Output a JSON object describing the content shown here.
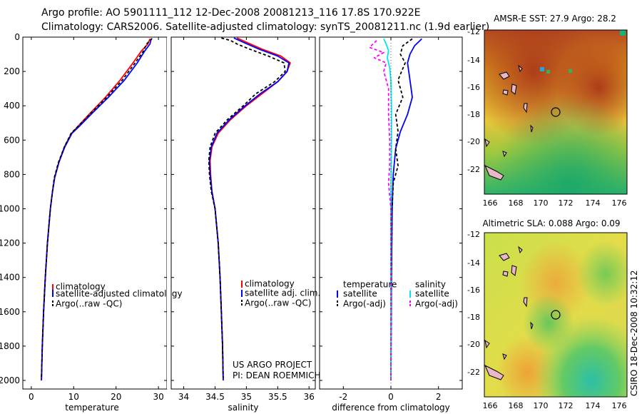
{
  "header": {
    "line1": "Argo profile: AO 5901111_112 12-Dec-2008 20081213_116 17.8S 170.922E",
    "line2": "Climatology: CARS2006. Satellite-adjusted climatology: synTS_20081211.nc (1.9d earlier)"
  },
  "footer": {
    "project": "US ARGO PROJECT",
    "pi": "PI: DEAN ROEMMICH",
    "stamp": "CSIRO 18-Dec-2008 10:32:12"
  },
  "colors": {
    "red": "#ff0000",
    "blue": "#0000ff",
    "black": "#000000",
    "cyan": "#00e5ee",
    "magenta": "#ff00ff"
  },
  "chart_data": [
    {
      "type": "line",
      "id": "temperature",
      "xlabel": "temperature",
      "ylabel": "",
      "xlim": [
        -2,
        32
      ],
      "ylim": [
        2050,
        0
      ],
      "xticks": [
        0,
        10,
        20,
        30
      ],
      "yticks": [
        0,
        200,
        400,
        600,
        800,
        1000,
        1200,
        1400,
        1600,
        1800,
        2000
      ],
      "legend": [
        "climatology",
        "satellite-adjusted climatology",
        "Argo(..raw -QC)"
      ],
      "series": [
        {
          "name": "climatology",
          "color": "#ff0000",
          "dash": "",
          "points": [
            [
              28,
              10
            ],
            [
              27.5,
              40
            ],
            [
              26,
              80
            ],
            [
              24,
              150
            ],
            [
              21,
              250
            ],
            [
              17.5,
              350
            ],
            [
              14,
              440
            ],
            [
              11,
              520
            ],
            [
              9.5,
              560
            ],
            [
              7.8,
              640
            ],
            [
              6.5,
              730
            ],
            [
              5.5,
              820
            ],
            [
              5,
              900
            ],
            [
              4.5,
              1000
            ],
            [
              3.8,
              1200
            ],
            [
              3.3,
              1400
            ],
            [
              2.9,
              1600
            ],
            [
              2.6,
              1800
            ],
            [
              2.4,
              2000
            ]
          ]
        },
        {
          "name": "satellite-adjusted climatology",
          "color": "#0000ff",
          "dash": "",
          "points": [
            [
              28.3,
              10
            ],
            [
              28,
              40
            ],
            [
              26.8,
              80
            ],
            [
              25,
              150
            ],
            [
              22,
              250
            ],
            [
              18.2,
              350
            ],
            [
              14.5,
              440
            ],
            [
              11.3,
              520
            ],
            [
              9.6,
              560
            ],
            [
              7.9,
              640
            ],
            [
              6.5,
              730
            ],
            [
              5.5,
              820
            ],
            [
              5,
              900
            ],
            [
              4.5,
              1000
            ],
            [
              3.8,
              1200
            ],
            [
              3.3,
              1400
            ],
            [
              2.9,
              1600
            ],
            [
              2.6,
              1800
            ],
            [
              2.4,
              2000
            ]
          ]
        },
        {
          "name": "Argo(..raw -QC)",
          "color": "#000000",
          "dash": "4,3",
          "points": [
            [
              28.5,
              8
            ],
            [
              27.2,
              40
            ],
            [
              26.5,
              80
            ],
            [
              24.5,
              150
            ],
            [
              21.5,
              250
            ],
            [
              17.8,
              350
            ],
            [
              14.2,
              440
            ],
            [
              11,
              520
            ],
            [
              9.4,
              560
            ],
            [
              7.8,
              640
            ],
            [
              6.4,
              730
            ],
            [
              5.4,
              820
            ],
            [
              5,
              900
            ],
            [
              4.5,
              1000
            ],
            [
              3.8,
              1200
            ],
            [
              3.3,
              1400
            ],
            [
              2.9,
              1600
            ],
            [
              2.6,
              1800
            ],
            [
              2.4,
              1985
            ]
          ]
        }
      ]
    },
    {
      "type": "line",
      "id": "salinity",
      "xlabel": "salinity",
      "ylabel": "",
      "xlim": [
        33.8,
        36.1
      ],
      "ylim": [
        2050,
        0
      ],
      "xticks": [
        34,
        34.5,
        35,
        35.5,
        36
      ],
      "yticks": [
        0,
        200,
        400,
        600,
        800,
        1000,
        1200,
        1400,
        1600,
        1800,
        2000
      ],
      "legend": [
        "climatology",
        "satellite adj. clim.",
        "Argo(..raw -QC)"
      ],
      "series": [
        {
          "name": "climatology",
          "color": "#ff0000",
          "dash": "",
          "points": [
            [
              34.85,
              5
            ],
            [
              35,
              30
            ],
            [
              35.25,
              70
            ],
            [
              35.55,
              110
            ],
            [
              35.7,
              150
            ],
            [
              35.65,
              200
            ],
            [
              35.5,
              260
            ],
            [
              35.25,
              330
            ],
            [
              35,
              400
            ],
            [
              34.75,
              480
            ],
            [
              34.55,
              560
            ],
            [
              34.45,
              640
            ],
            [
              34.42,
              720
            ],
            [
              34.43,
              800
            ],
            [
              34.45,
              900
            ],
            [
              34.5,
              1000
            ],
            [
              34.55,
              1200
            ],
            [
              34.58,
              1400
            ],
            [
              34.6,
              1600
            ],
            [
              34.62,
              1800
            ],
            [
              34.63,
              2000
            ]
          ]
        },
        {
          "name": "satellite adj. clim.",
          "color": "#0000ff",
          "dash": "",
          "points": [
            [
              34.8,
              5
            ],
            [
              34.95,
              30
            ],
            [
              35.2,
              70
            ],
            [
              35.5,
              110
            ],
            [
              35.68,
              150
            ],
            [
              35.65,
              200
            ],
            [
              35.5,
              260
            ],
            [
              35.22,
              330
            ],
            [
              34.98,
              400
            ],
            [
              34.73,
              480
            ],
            [
              34.53,
              560
            ],
            [
              34.44,
              640
            ],
            [
              34.41,
              720
            ],
            [
              34.42,
              800
            ],
            [
              34.45,
              900
            ],
            [
              34.5,
              1000
            ],
            [
              34.55,
              1200
            ],
            [
              34.58,
              1400
            ],
            [
              34.6,
              1600
            ],
            [
              34.62,
              1800
            ],
            [
              34.63,
              2000
            ]
          ]
        },
        {
          "name": "Argo(..raw -QC)",
          "color": "#000000",
          "dash": "4,3",
          "points": [
            [
              34.6,
              5
            ],
            [
              34.75,
              20
            ],
            [
              34.85,
              40
            ],
            [
              35.05,
              70
            ],
            [
              35.35,
              110
            ],
            [
              35.6,
              150
            ],
            [
              35.62,
              200
            ],
            [
              35.45,
              260
            ],
            [
              35.15,
              330
            ],
            [
              34.95,
              400
            ],
            [
              34.7,
              480
            ],
            [
              34.5,
              560
            ],
            [
              34.42,
              640
            ],
            [
              34.4,
              720
            ],
            [
              34.41,
              800
            ],
            [
              34.44,
              900
            ],
            [
              34.5,
              1000
            ],
            [
              34.55,
              1200
            ],
            [
              34.58,
              1400
            ],
            [
              34.6,
              1600
            ],
            [
              34.62,
              1800
            ],
            [
              34.63,
              1985
            ]
          ]
        }
      ]
    },
    {
      "type": "line",
      "id": "difference",
      "xlabel": "difference from climatology",
      "ylabel": "",
      "xlim": [
        -3,
        3
      ],
      "ylim": [
        2050,
        0
      ],
      "xticks": [
        -2,
        0,
        2
      ],
      "yticks": [
        0,
        200,
        400,
        600,
        800,
        1000,
        1200,
        1400,
        1600,
        1800,
        2000
      ],
      "legend": [
        "temperature",
        "satellite",
        "Argo(-adj)",
        "salinity",
        "satellite",
        "Argo(-adj)"
      ],
      "series": [
        {
          "name": "temperature satellite",
          "color": "#0000ff",
          "dash": "",
          "points": [
            [
              1.3,
              10
            ],
            [
              1.0,
              50
            ],
            [
              0.8,
              100
            ],
            [
              0.7,
              150
            ],
            [
              0.8,
              250
            ],
            [
              0.9,
              350
            ],
            [
              0.7,
              450
            ],
            [
              0.4,
              550
            ],
            [
              0.2,
              650
            ],
            [
              0.1,
              800
            ],
            [
              0.05,
              1000
            ],
            [
              0.02,
              1400
            ],
            [
              0,
              2000
            ]
          ]
        },
        {
          "name": "temperature Argo(-adj)",
          "color": "#000000",
          "dash": "4,3",
          "points": [
            [
              0.9,
              10
            ],
            [
              0.5,
              50
            ],
            [
              0.4,
              100
            ],
            [
              0.6,
              150
            ],
            [
              0.3,
              250
            ],
            [
              0.5,
              350
            ],
            [
              0.2,
              450
            ],
            [
              0.3,
              550
            ],
            [
              0.2,
              650
            ],
            [
              0.3,
              750
            ],
            [
              0.1,
              850
            ],
            [
              0.05,
              1000
            ],
            [
              0.02,
              1400
            ],
            [
              0,
              2000
            ]
          ]
        },
        {
          "name": "salinity satellite",
          "color": "#00e5ee",
          "dash": "",
          "points": [
            [
              -0.3,
              10
            ],
            [
              -0.2,
              40
            ],
            [
              -0.1,
              80
            ],
            [
              -0.15,
              120
            ],
            [
              -0.05,
              180
            ],
            [
              0,
              250
            ],
            [
              0.02,
              400
            ],
            [
              0.02,
              600
            ],
            [
              0.01,
              800
            ],
            [
              0,
              1000
            ],
            [
              0,
              1400
            ],
            [
              0,
              2000
            ]
          ]
        },
        {
          "name": "salinity Argo(-adj)",
          "color": "#ff00ff",
          "dash": "4,3",
          "points": [
            [
              -0.6,
              20
            ],
            [
              -0.9,
              60
            ],
            [
              -0.3,
              90
            ],
            [
              -0.7,
              120
            ],
            [
              -0.2,
              150
            ],
            [
              -0.3,
              200
            ],
            [
              -0.1,
              300
            ],
            [
              -0.1,
              450
            ],
            [
              -0.05,
              600
            ],
            [
              -0.05,
              750
            ],
            [
              -0.1,
              850
            ],
            [
              0,
              1000
            ],
            [
              0,
              1400
            ],
            [
              0,
              2000
            ]
          ]
        }
      ]
    }
  ],
  "maps": [
    {
      "id": "sst",
      "title": "AMSR-E SST: 27.9 Argo: 28.2",
      "xticks": [
        "166",
        "168",
        "170",
        "172",
        "174",
        "176"
      ],
      "yticks": [
        "-12",
        "-14",
        "-16",
        "-18",
        "-20",
        "-22"
      ]
    },
    {
      "id": "sla",
      "title": "Altimetric SLA: 0.088 Argo: 0.09",
      "xticks": [
        "166",
        "168",
        "170",
        "172",
        "174",
        "176"
      ],
      "yticks": [
        "-12",
        "-14",
        "-16",
        "-18",
        "-20",
        "-22"
      ]
    }
  ]
}
